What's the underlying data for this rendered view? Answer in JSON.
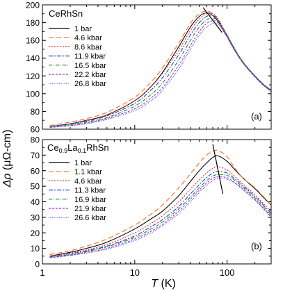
{
  "figure": {
    "xlabel_symbol": "T",
    "xlabel_unit": "(K)",
    "ylabel_symbol": "Δρ",
    "ylabel_unit": "(μΩ-cm)"
  },
  "chart_data": [
    {
      "type": "line",
      "panel_label": "(a)",
      "sample_label": "CeRhSn",
      "x_scale": "log",
      "xlim": [
        1,
        300
      ],
      "ylim": [
        60,
        200
      ],
      "yticks": [
        60,
        80,
        100,
        120,
        140,
        160,
        180,
        200
      ],
      "x": [
        1.2,
        2,
        3,
        5,
        10,
        15,
        20,
        30,
        40,
        50,
        60,
        70,
        80,
        100,
        120,
        150,
        200,
        250,
        300
      ],
      "series": [
        {
          "name": "1 bar",
          "color": "#000000",
          "dash": "",
          "values": [
            63,
            66,
            70,
            76,
            92,
            108,
            124,
            153,
            175,
            187,
            191,
            188,
            181,
            164,
            150,
            135,
            120,
            110,
            104
          ]
        },
        {
          "name": "4.6 kbar",
          "color": "#ff6a1a",
          "dash": "7,4",
          "values": [
            64,
            68,
            72,
            79,
            96,
            113,
            129,
            157,
            179,
            190,
            193,
            190,
            183,
            164,
            149,
            134,
            119,
            109,
            103
          ]
        },
        {
          "name": "8.6 kbar",
          "color": "#ee2222",
          "dash": "2,2",
          "values": [
            63,
            66,
            70,
            76,
            92,
            108,
            123,
            149,
            171,
            184,
            190,
            190,
            184,
            166,
            151,
            135,
            120,
            110,
            104
          ]
        },
        {
          "name": "11.9 kbar",
          "color": "#2244dd",
          "dash": "6,2,2,2",
          "values": [
            63,
            66,
            69,
            75,
            89,
            104,
            118,
            144,
            166,
            180,
            187,
            188,
            183,
            166,
            151,
            135,
            120,
            110,
            104
          ]
        },
        {
          "name": "16.5 kbar",
          "color": "#1e8b1e",
          "dash": "5,2,1,2",
          "values": [
            63,
            65,
            68,
            73,
            86,
            99,
            112,
            138,
            160,
            175,
            183,
            185,
            182,
            166,
            151,
            135,
            120,
            110,
            104
          ]
        },
        {
          "name": "22.2 kbar",
          "color": "#b52fc9",
          "dash": "3,2",
          "values": [
            62,
            64,
            67,
            72,
            83,
            95,
            107,
            132,
            154,
            170,
            179,
            182,
            180,
            165,
            150,
            134,
            119,
            109,
            103
          ]
        },
        {
          "name": "26.8 kbar",
          "color": "#3a3aff",
          "dash": "1,1.5",
          "values": [
            62,
            64,
            66,
            71,
            81,
            92,
            104,
            128,
            150,
            166,
            175,
            179,
            178,
            164,
            149,
            134,
            119,
            109,
            102
          ]
        }
      ],
      "guide_line": [
        [
          55,
          197
        ],
        [
          88,
          169
        ]
      ]
    },
    {
      "type": "line",
      "panel_label": "(b)",
      "sample_label_main": "Ce",
      "sample_label_sub1": "0.9",
      "sample_label_mid": "La",
      "sample_label_sub2": "0.1",
      "sample_label_tail": "RhSn",
      "x_scale": "log",
      "xlim": [
        1,
        300
      ],
      "ylim": [
        0,
        80
      ],
      "yticks": [
        0,
        10,
        20,
        30,
        40,
        50,
        60,
        70,
        80
      ],
      "xticks": [
        1,
        10,
        100
      ],
      "x": [
        1.2,
        2,
        3,
        5,
        10,
        15,
        20,
        30,
        40,
        50,
        60,
        70,
        80,
        100,
        120,
        150,
        200,
        250,
        300
      ],
      "series": [
        {
          "name": "1 bar",
          "color": "#000000",
          "dash": "",
          "values": [
            5,
            7.5,
            10,
            14,
            22.5,
            29,
            34,
            44,
            53,
            60,
            65,
            68.5,
            69.5,
            66,
            61,
            55,
            48.5,
            42.5,
            38
          ]
        },
        {
          "name": "1.1 kbar",
          "color": "#ff6a1a",
          "dash": "7,4",
          "values": [
            6,
            8.5,
            11.5,
            16,
            25,
            32,
            38,
            49,
            58,
            65,
            70,
            72.5,
            73,
            69,
            62,
            55,
            49,
            43,
            38
          ]
        },
        {
          "name": "4.6 kbar",
          "color": "#ee2222",
          "dash": "2,2",
          "values": [
            5,
            7,
            9,
            12.5,
            20,
            26,
            31,
            40,
            48,
            54,
            58.5,
            61.5,
            62.5,
            60.5,
            56.5,
            51,
            44.5,
            38.5,
            33.5
          ]
        },
        {
          "name": "11.3 kbar",
          "color": "#2244dd",
          "dash": "6,2,2,2",
          "values": [
            4.5,
            6.5,
            8.5,
            11.5,
            18,
            24,
            28.5,
            37,
            45,
            51,
            55.5,
            58.5,
            59.5,
            58.5,
            55,
            50,
            43.5,
            37.5,
            32.5
          ]
        },
        {
          "name": "16.9 kbar",
          "color": "#1e8b1e",
          "dash": "5,2,1,2",
          "values": [
            4.5,
            6,
            8,
            11,
            17,
            22.5,
            27,
            35.5,
            43,
            49,
            53.5,
            56.5,
            57.5,
            57,
            54,
            49,
            42.5,
            36.5,
            31.5
          ]
        },
        {
          "name": "21.9 kbar",
          "color": "#b52fc9",
          "dash": "3,2",
          "values": [
            4,
            5.5,
            7.5,
            10,
            16,
            21,
            25.5,
            34,
            41.5,
            47.5,
            52,
            55,
            56,
            55.5,
            52.5,
            48,
            41.5,
            35.5,
            30.5
          ]
        },
        {
          "name": "26.6 kbar",
          "color": "#3a3aff",
          "dash": "1,1.5",
          "values": [
            4,
            5.5,
            7,
            9.5,
            15,
            20,
            24.5,
            32.5,
            40,
            46,
            50.5,
            53.5,
            55,
            54.5,
            52,
            47.5,
            41,
            35,
            30
          ]
        }
      ],
      "guide_line": [
        [
          70,
          77
        ],
        [
          90,
          45
        ]
      ]
    }
  ]
}
